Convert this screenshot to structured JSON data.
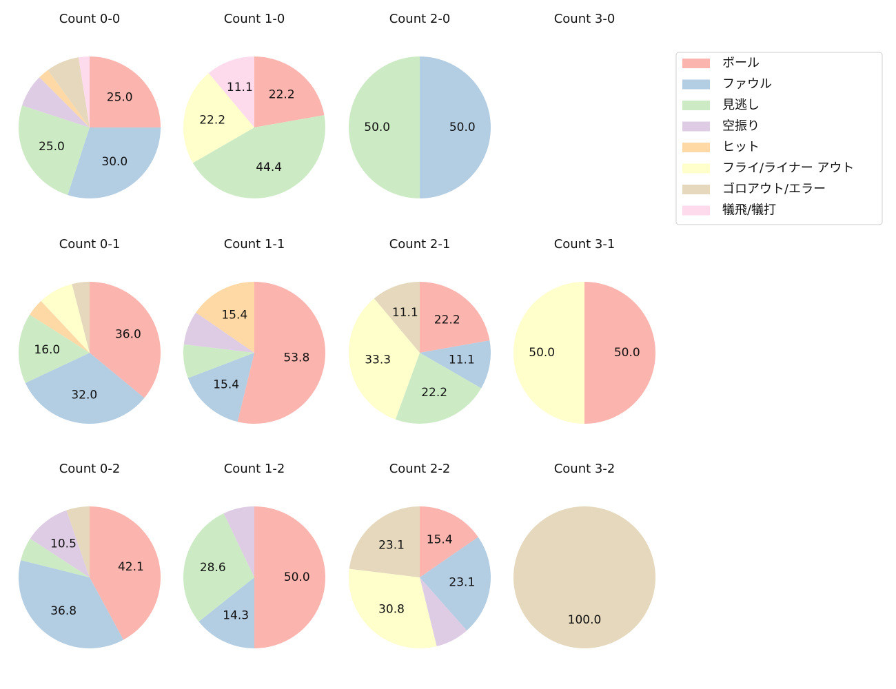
{
  "legend": {
    "categories": [
      "ボール",
      "ファウル",
      "見逃し",
      "空振り",
      "ヒット",
      "フライ/ライナー アウト",
      "ゴロアウト/エラー",
      "犠飛/犠打"
    ],
    "colors": [
      "#fbb4ae",
      "#b3cde3",
      "#ccebc5",
      "#decbe4",
      "#fed9a6",
      "#ffffcc",
      "#e5d8bd",
      "#fddaec"
    ]
  },
  "chart_data": [
    {
      "type": "pie",
      "title": "Count 0-0",
      "values": [
        25,
        30,
        25,
        7.5,
        2.5,
        0,
        7.5,
        2.5
      ],
      "value_labels": [
        "25.0",
        "30.0",
        "25.0",
        null,
        null,
        null,
        null,
        null
      ]
    },
    {
      "type": "pie",
      "title": "Count 1-0",
      "values": [
        22.2,
        0,
        44.4,
        0,
        0,
        22.2,
        0,
        11.1
      ],
      "value_labels": [
        "22.2",
        null,
        "44.4",
        null,
        null,
        "22.2",
        null,
        "11.1"
      ]
    },
    {
      "type": "pie",
      "title": "Count 2-0",
      "values": [
        0,
        50,
        50,
        0,
        0,
        0,
        0,
        0
      ],
      "value_labels": [
        null,
        "50.0",
        "50.0",
        null,
        null,
        null,
        null,
        null
      ]
    },
    {
      "type": "pie",
      "title": "Count 3-0",
      "values": [
        0,
        0,
        0,
        0,
        0,
        0,
        0,
        0
      ],
      "value_labels": [
        null,
        null,
        null,
        null,
        null,
        null,
        null,
        null
      ]
    },
    {
      "type": "pie",
      "title": "Count 0-1",
      "values": [
        36,
        32,
        16,
        0,
        4,
        8,
        4,
        0
      ],
      "value_labels": [
        "36.0",
        "32.0",
        "16.0",
        null,
        null,
        null,
        null,
        null
      ]
    },
    {
      "type": "pie",
      "title": "Count 1-1",
      "values": [
        53.8,
        15.4,
        7.7,
        7.7,
        15.4,
        0,
        0,
        0
      ],
      "value_labels": [
        "53.8",
        "15.4",
        null,
        null,
        "15.4",
        null,
        null,
        null
      ]
    },
    {
      "type": "pie",
      "title": "Count 2-1",
      "values": [
        22.2,
        11.1,
        22.2,
        0,
        0,
        33.3,
        11.1,
        0
      ],
      "value_labels": [
        "22.2",
        "11.1",
        "22.2",
        null,
        null,
        "33.3",
        "11.1",
        null
      ]
    },
    {
      "type": "pie",
      "title": "Count 3-1",
      "values": [
        50,
        0,
        0,
        0,
        0,
        50,
        0,
        0
      ],
      "value_labels": [
        "50.0",
        null,
        null,
        null,
        null,
        "50.0",
        null,
        null
      ]
    },
    {
      "type": "pie",
      "title": "Count 0-2",
      "values": [
        42.1,
        36.8,
        5.3,
        10.5,
        0,
        0,
        5.3,
        0
      ],
      "value_labels": [
        "42.1",
        "36.8",
        null,
        "10.5",
        null,
        null,
        null,
        null
      ]
    },
    {
      "type": "pie",
      "title": "Count 1-2",
      "values": [
        50,
        14.3,
        28.6,
        7.1,
        0,
        0,
        0,
        0
      ],
      "value_labels": [
        "50.0",
        "14.3",
        "28.6",
        null,
        null,
        null,
        null,
        null
      ]
    },
    {
      "type": "pie",
      "title": "Count 2-2",
      "values": [
        15.4,
        23.1,
        0,
        7.7,
        0,
        30.8,
        23.1,
        0
      ],
      "value_labels": [
        "15.4",
        "23.1",
        null,
        null,
        null,
        "30.8",
        "23.1",
        null
      ]
    },
    {
      "type": "pie",
      "title": "Count 3-2",
      "values": [
        0,
        0,
        0,
        0,
        0,
        0,
        100,
        0
      ],
      "value_labels": [
        null,
        null,
        null,
        null,
        null,
        null,
        "100.0",
        null
      ]
    }
  ]
}
